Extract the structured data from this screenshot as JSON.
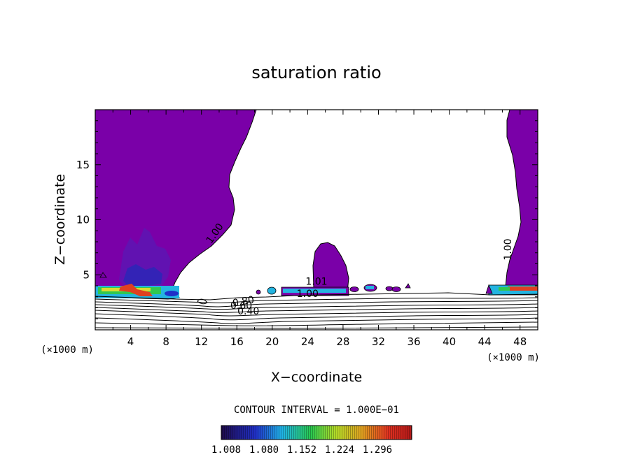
{
  "chart_data": {
    "type": "contour",
    "title": "saturation ratio",
    "xlabel": "X−coordinate",
    "ylabel": "Z−coordinate",
    "x_unit": "(×1000 m)",
    "x_unit_right": "(×1000 m)",
    "xlim": [
      0,
      50
    ],
    "ylim": [
      0,
      20
    ],
    "x_ticks": [
      4,
      8,
      12,
      16,
      20,
      24,
      28,
      32,
      36,
      40,
      44,
      48
    ],
    "y_ticks": [
      5,
      10,
      15
    ],
    "contour_labels": [
      {
        "text": "1.00",
        "x": 13.8,
        "z": 8.6,
        "angle": -55
      },
      {
        "text": "1.00",
        "x": 47.0,
        "z": 7.3,
        "angle": -90
      },
      {
        "text": "1.00",
        "x": 24.0,
        "z": 3.0,
        "angle": 0
      },
      {
        "text": "1.01",
        "x": 25.0,
        "z": 4.1,
        "angle": 0
      },
      {
        "text": "0.80",
        "x": 16.8,
        "z": 2.3,
        "angle": -10
      },
      {
        "text": "0.60",
        "x": 16.5,
        "z": 1.9,
        "angle": 0
      },
      {
        "text": "0.40",
        "x": 17.3,
        "z": 1.4,
        "angle": 0
      }
    ],
    "contour_interval_label": "CONTOUR INTERVAL = 1.000E−01",
    "colorbar": {
      "tick_labels": [
        "1.008",
        "1.080",
        "1.152",
        "1.224",
        "1.296"
      ],
      "colors": [
        "#1e0a4a",
        "#2030c8",
        "#20b4e6",
        "#28c850",
        "#b4dc28",
        "#e0a020",
        "#e03020",
        "#b01818"
      ]
    },
    "colors": {
      "fill": "#7a00a8",
      "line": "#000000"
    }
  }
}
